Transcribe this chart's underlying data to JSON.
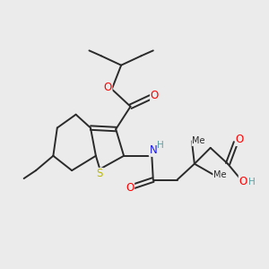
{
  "bg_color": "#ebebeb",
  "bond_color": "#2a2a2a",
  "bond_width": 1.4,
  "atom_colors": {
    "O": "#ff0000",
    "N": "#1a1aee",
    "S": "#bbbb00",
    "H": "#5f9ea0",
    "C": "#2a2a2a"
  },
  "font_size": 8.5,
  "font_size_sub": 7.5
}
